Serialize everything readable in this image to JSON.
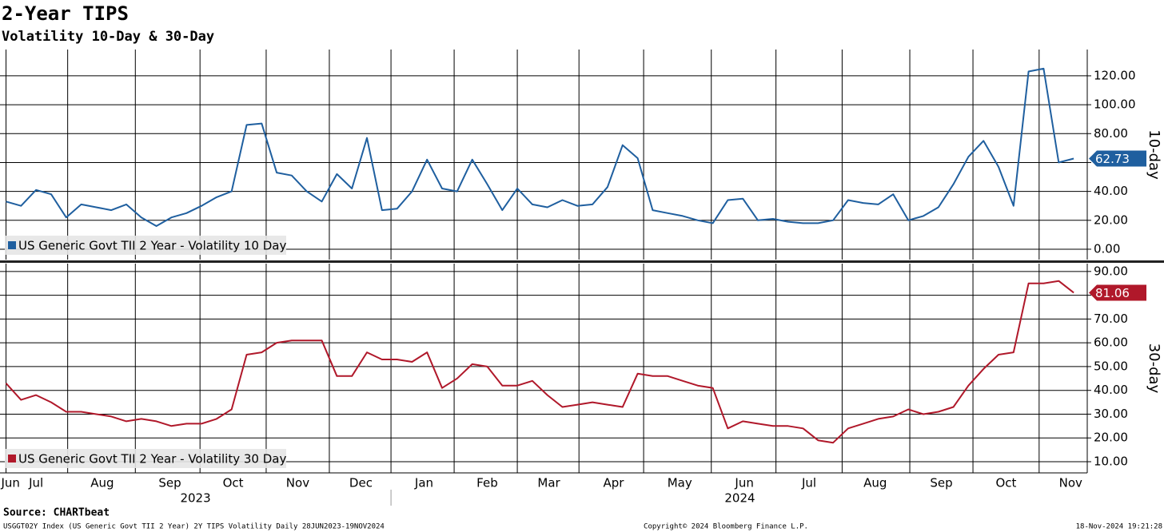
{
  "chart_data": [
    {
      "type": "line",
      "title": "2-Year TIPS",
      "subtitle": "Volatility 10-Day & 30-Day",
      "ylabel": "10-day",
      "xlim": [
        -0.4,
        71.9
      ],
      "ylim": [
        -7.2,
        138.2
      ],
      "yticks": [
        {
          "value": 0,
          "label": "0.00"
        },
        {
          "value": 20,
          "label": "20.00"
        },
        {
          "value": 40,
          "label": "40.00"
        },
        {
          "value": 60,
          "label": "60.00"
        },
        {
          "value": 80,
          "label": "80.00"
        },
        {
          "value": 100,
          "label": "100.00"
        },
        {
          "value": 120,
          "label": "120.00"
        }
      ],
      "grid": true,
      "legend": "lower left",
      "series": [
        {
          "name": "US Generic Govt TII 2 Year - Volatility 10 Day",
          "color": "#1f5f9f",
          "values": [
            33,
            30,
            41,
            38,
            22,
            31,
            29,
            27,
            31,
            22,
            16,
            22,
            25,
            30,
            36,
            40,
            86,
            87,
            53,
            51,
            40,
            33,
            52,
            42,
            77,
            27,
            28,
            40,
            62,
            42,
            40,
            62,
            45,
            27,
            42,
            31,
            29,
            34,
            30,
            31,
            43,
            72,
            63,
            27,
            25,
            23,
            20,
            18,
            34,
            35,
            20,
            21,
            19,
            18,
            18,
            20,
            34,
            32,
            31,
            38,
            20,
            23,
            29,
            45,
            64,
            75,
            57,
            30,
            123,
            125,
            60,
            62.73
          ]
        }
      ]
    },
    {
      "type": "line",
      "ylabel": "30-day",
      "xlim": [
        -0.4,
        71.9
      ],
      "ylim": [
        5.3,
        93.3
      ],
      "yticks": [
        {
          "value": 10,
          "label": "10.00"
        },
        {
          "value": 20,
          "label": "20.00"
        },
        {
          "value": 30,
          "label": "30.00"
        },
        {
          "value": 40,
          "label": "40.00"
        },
        {
          "value": 50,
          "label": "50.00"
        },
        {
          "value": 60,
          "label": "60.00"
        },
        {
          "value": 70,
          "label": "70.00"
        },
        {
          "value": 80,
          "label": "80.00"
        },
        {
          "value": 90,
          "label": "90.00"
        }
      ],
      "grid": true,
      "legend": "lower left",
      "series": [
        {
          "name": "US Generic Govt TII 2 Year - Volatility 30 Day",
          "color": "#b0182a",
          "values": [
            43,
            36,
            38,
            35,
            31,
            31,
            30,
            29,
            27,
            28,
            27,
            25,
            26,
            26,
            28,
            32,
            55,
            56,
            60,
            61,
            61,
            61,
            46,
            46,
            56,
            53,
            53,
            52,
            56,
            41,
            45,
            51,
            50,
            42,
            42,
            44,
            38,
            33,
            34,
            35,
            34,
            33,
            47,
            46,
            46,
            44,
            42,
            41,
            24,
            27,
            26,
            25,
            25,
            24,
            19,
            18,
            24,
            26,
            28,
            29,
            32,
            30,
            31,
            33,
            42,
            49,
            55,
            56,
            85,
            85,
            86,
            81.06
          ]
        }
      ],
      "xticks": [
        {
          "value": 0.3,
          "label": "Jun"
        },
        {
          "value": 2.0,
          "label": "Jul"
        },
        {
          "value": 6.4,
          "label": "Aug"
        },
        {
          "value": 10.9,
          "label": "Sep"
        },
        {
          "value": 15.1,
          "label": "Oct"
        },
        {
          "value": 19.4,
          "label": "Nov"
        },
        {
          "value": 23.6,
          "label": "Dec"
        },
        {
          "value": 27.8,
          "label": "Jan"
        },
        {
          "value": 32.0,
          "label": "Feb"
        },
        {
          "value": 36.1,
          "label": "Mar"
        },
        {
          "value": 40.4,
          "label": "Apr"
        },
        {
          "value": 44.8,
          "label": "May"
        },
        {
          "value": 49.1,
          "label": "Jun"
        },
        {
          "value": 53.4,
          "label": "Jul"
        },
        {
          "value": 57.8,
          "label": "Aug"
        },
        {
          "value": 62.2,
          "label": "Sep"
        },
        {
          "value": 66.5,
          "label": "Oct"
        },
        {
          "value": 70.8,
          "label": "Nov"
        }
      ],
      "xgrid": [
        0,
        4.1,
        8.6,
        12.9,
        17.3,
        21.5,
        25.6,
        29.8,
        34.0,
        38.1,
        42.4,
        46.9,
        51.2,
        55.6,
        60.1,
        64.3,
        68.7
      ],
      "xyears": [
        {
          "value": 12.6,
          "label": "2023"
        },
        {
          "value": 48.8,
          "label": "2024"
        }
      ],
      "year_break": 25.6
    }
  ],
  "footer": {
    "source": "Source: CHARTbeat",
    "description": "USGGT02Y Index (US Generic Govt TII 2 Year) 2Y TIPS Volatility  Daily 28JUN2023-19NOV2024",
    "copyright": "Copyright© 2024 Bloomberg Finance L.P.",
    "timestamp": "18-Nov-2024 19:21:28"
  }
}
